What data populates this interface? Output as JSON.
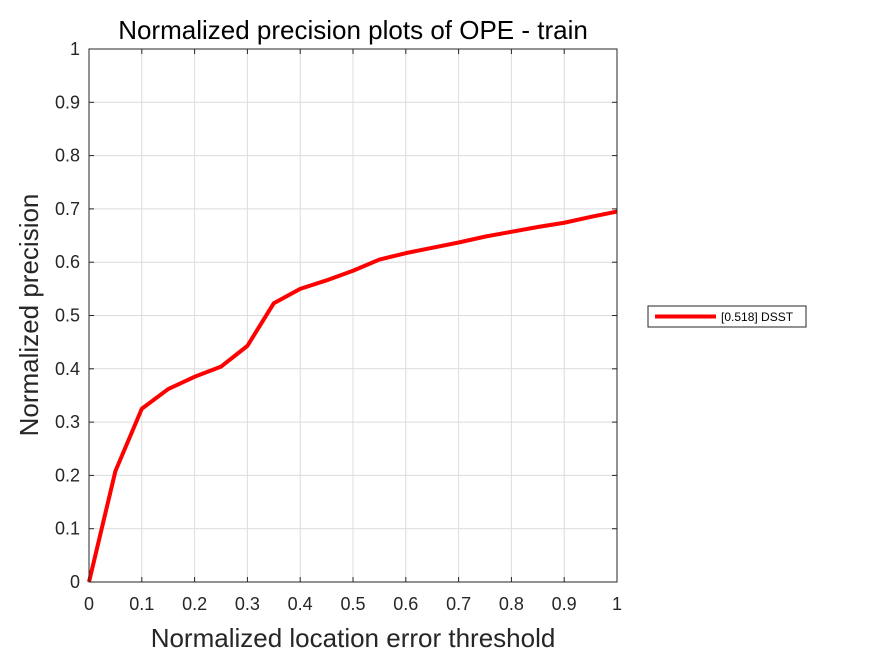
{
  "chart_data": {
    "type": "line",
    "title": "Normalized precision plots of OPE - train",
    "xlabel": "Normalized location error threshold",
    "ylabel": "Normalized precision",
    "xlim": [
      0,
      1
    ],
    "ylim": [
      0,
      1
    ],
    "xticks": [
      "0",
      "0.1",
      "0.2",
      "0.3",
      "0.4",
      "0.5",
      "0.6",
      "0.7",
      "0.8",
      "0.9",
      "1"
    ],
    "yticks": [
      "0",
      "0.1",
      "0.2",
      "0.3",
      "0.4",
      "0.5",
      "0.6",
      "0.7",
      "0.8",
      "0.9",
      "1"
    ],
    "grid": true,
    "legend_position": "outside-right",
    "series": [
      {
        "name": "[0.518] DSST",
        "color": "#ff0000",
        "x": [
          0,
          0.05,
          0.1,
          0.15,
          0.2,
          0.25,
          0.3,
          0.35,
          0.4,
          0.45,
          0.5,
          0.55,
          0.6,
          0.65,
          0.7,
          0.75,
          0.8,
          0.85,
          0.9,
          0.95,
          1
        ],
        "y": [
          0,
          0.208,
          0.325,
          0.362,
          0.385,
          0.404,
          0.443,
          0.523,
          0.55,
          0.566,
          0.584,
          0.605,
          0.617,
          0.627,
          0.637,
          0.648,
          0.657,
          0.666,
          0.674,
          0.685,
          0.695
        ]
      }
    ]
  }
}
